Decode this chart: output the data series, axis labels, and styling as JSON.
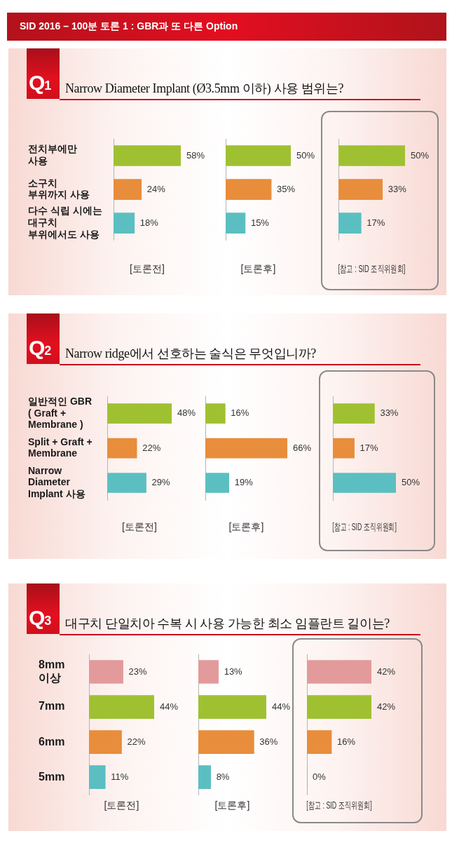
{
  "chart_data": [
    {
      "type": "bar",
      "orientation": "horizontal",
      "title": "SID 2016 – 100분 토론 1 : GBR과 또 다른 Option",
      "subtitle": "Narrow Diameter Implant (Ø3.5mm 이하) 사용 범위는?",
      "annotations": [
        "Q1"
      ],
      "xlabel": "[토론전]",
      "categories": [
        "전치부에만\n사용",
        "소구치\n부위까지 사용",
        "다수 식립 시에는\n대구치\n부위에서도 사용"
      ],
      "values": [
        58,
        24,
        18
      ],
      "value_labels": [
        "58%",
        "24%",
        "18%"
      ],
      "colors": [
        "#9fc131",
        "#e88d3b",
        "#5bbfc1"
      ],
      "tick_labels": "y"
    },
    {
      "type": "bar",
      "orientation": "horizontal",
      "xlabel": "[토론후]",
      "categories": [
        null,
        null,
        null
      ],
      "values": [
        50,
        35,
        15
      ],
      "value_labels": [
        "50%",
        "35%",
        "15%"
      ],
      "colors": [
        "#9fc131",
        "#e88d3b",
        "#5bbfc1"
      ],
      "tick_labels": false
    },
    {
      "type": "bar",
      "orientation": "horizontal",
      "xlabel": "[참고 : SID 조직위원회]",
      "categories": [
        null,
        null,
        null
      ],
      "values": [
        50,
        33,
        17
      ],
      "value_labels": [
        "50%",
        "33%",
        "17%"
      ],
      "colors": [
        "#9fc131",
        "#e88d3b",
        "#5bbfc1"
      ],
      "tick_labels": false
    },
    {
      "type": "bar",
      "orientation": "horizontal",
      "subtitle": "Narrow ridge에서 선호하는 술식은 무엇입니까?",
      "annotations": [
        "Q2"
      ],
      "xlabel": "[토론전]",
      "categories": [
        "일반적인 GBR\n( Graft +\nMembrane )",
        "Split + Graft +\nMembrane",
        "Narrow\nDiameter\nImplant 사용"
      ],
      "values": [
        48,
        22,
        29
      ],
      "value_labels": [
        "48%",
        "22%",
        "29%"
      ],
      "colors": [
        "#9fc131",
        "#e88d3b",
        "#5bbfc1"
      ],
      "tick_labels": "y"
    },
    {
      "type": "bar",
      "orientation": "horizontal",
      "xlabel": "[토론후]",
      "categories": [
        null,
        null,
        null
      ],
      "values": [
        16,
        66,
        19
      ],
      "value_labels": [
        "16%",
        "66%",
        "19%"
      ],
      "colors": [
        "#9fc131",
        "#e88d3b",
        "#5bbfc1"
      ],
      "tick_labels": false
    },
    {
      "type": "bar",
      "orientation": "horizontal",
      "xlabel": "[참고 : SID 조직위원회]",
      "categories": [
        null,
        null,
        null
      ],
      "values": [
        33,
        17,
        50
      ],
      "value_labels": [
        "33%",
        "17%",
        "50%"
      ],
      "colors": [
        "#9fc131",
        "#e88d3b",
        "#5bbfc1"
      ],
      "tick_labels": false
    },
    {
      "type": "bar",
      "orientation": "horizontal",
      "subtitle": "대구치 단일치아 수복 시 사용 가능한 최소 임플란트 길이는?",
      "annotations": [
        "Q3"
      ],
      "xlabel": "[토론전]",
      "categories": [
        "8mm\n이상",
        "7mm",
        "6mm",
        "5mm"
      ],
      "values": [
        23,
        44,
        22,
        11
      ],
      "value_labels": [
        "23%",
        "44%",
        "22%",
        "11%"
      ],
      "colors": [
        "#e39a9a",
        "#9fc131",
        "#e88d3b",
        "#5bbfc1"
      ],
      "tick_labels": "y"
    },
    {
      "type": "bar",
      "orientation": "horizontal",
      "xlabel": "[토론후]",
      "categories": [
        null,
        null,
        null,
        null
      ],
      "values": [
        13,
        44,
        36,
        8
      ],
      "value_labels": [
        "13%",
        "44%",
        "36%",
        "8%"
      ],
      "colors": [
        "#e39a9a",
        "#9fc131",
        "#e88d3b",
        "#5bbfc1"
      ],
      "tick_labels": false
    },
    {
      "type": "bar",
      "orientation": "horizontal",
      "xlabel": "[참고 : SID 조직위원회]",
      "categories": [
        null,
        null,
        null,
        null
      ],
      "values": [
        42,
        42,
        16,
        0
      ],
      "value_labels": [
        "42%",
        "42%",
        "16%",
        "0%"
      ],
      "colors": [
        "#e39a9a",
        "#9fc131",
        "#e88d3b",
        "#5bbfc1"
      ],
      "tick_labels": false
    }
  ]
}
